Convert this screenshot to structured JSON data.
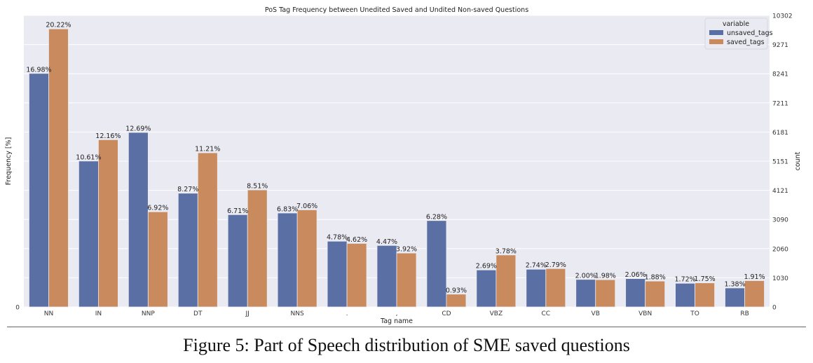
{
  "chart_data": {
    "type": "bar",
    "title": "PoS Tag Frequency between Unedited Saved and Undited Non-saved Questions",
    "xlabel": "Tag name",
    "ylabel": "Frequency [%]",
    "ylabel_right": "count",
    "categories": [
      "NN",
      "IN",
      "NNP",
      "DT",
      "JJ",
      "NNS",
      ".",
      ",",
      "CD",
      "VBZ",
      "CC",
      "VB",
      "VBN",
      "TO",
      "RB"
    ],
    "series": [
      {
        "name": "unsaved_tags",
        "color": "#5a6fa3",
        "values": [
          16.98,
          10.61,
          12.69,
          8.27,
          6.71,
          6.83,
          4.78,
          4.47,
          6.28,
          2.69,
          2.74,
          2.0,
          2.06,
          1.72,
          1.38
        ],
        "labels": [
          "16.98%",
          "10.61%",
          "12.69%",
          "8.27%",
          "6.71%",
          "6.83%",
          "4.78%",
          "4.47%",
          "6.28%",
          "2.69%",
          "2.74%",
          "2.00%",
          "2.06%",
          "1.72%",
          "1.38%"
        ]
      },
      {
        "name": "saved_tags",
        "color": "#c98a5e",
        "values": [
          20.22,
          12.16,
          6.92,
          11.21,
          8.51,
          7.06,
          4.62,
          3.92,
          0.93,
          3.78,
          2.79,
          1.98,
          1.88,
          1.75,
          1.91
        ],
        "labels": [
          "20.22%",
          "12.16%",
          "6.92%",
          "11.21%",
          "8.51%",
          "7.06%",
          "4.62%",
          "3.92%",
          "0.93%",
          "3.78%",
          "2.79%",
          "1.98%",
          "1.88%",
          "1.75%",
          "1.91%"
        ]
      }
    ],
    "ylim": [
      0,
      21.2
    ],
    "yticks_left": [
      "0"
    ],
    "yticks_right": [
      "0",
      "1030",
      "2060",
      "3090",
      "4121",
      "5151",
      "6181",
      "7211",
      "8241",
      "9271",
      "10302"
    ],
    "legend": {
      "title": "variable",
      "position": "top-right"
    },
    "grid": true,
    "background": "#eaeaf2"
  },
  "caption": "Figure 5: Part of Speech distribution of SME saved questions"
}
